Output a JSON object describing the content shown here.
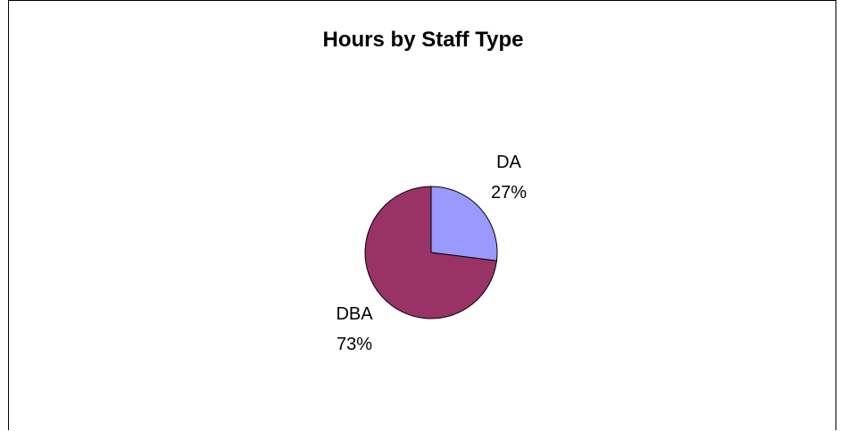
{
  "chart_data": {
    "type": "pie",
    "title": "Hours by Staff Type",
    "slices": [
      {
        "label": "DA",
        "percent_label": "27%",
        "value": 27,
        "color": "#9999ff"
      },
      {
        "label": "DBA",
        "percent_label": "73%",
        "value": 73,
        "color": "#993366"
      }
    ],
    "start_angle": "12 o'clock",
    "direction": "clockwise"
  }
}
